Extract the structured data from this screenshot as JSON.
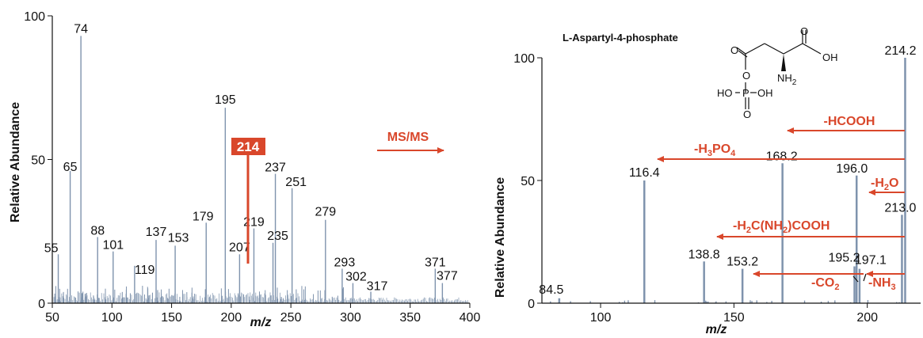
{
  "colors": {
    "peak": "#7f93ad",
    "annotation": "#d9472b",
    "axis": "#111111"
  },
  "chart_data": [
    {
      "type": "bar",
      "xlabel": "m/z",
      "ylabel": "Relative Abundance",
      "xlim": [
        50,
        400
      ],
      "ylim": [
        0,
        100
      ],
      "xticks": [
        "50",
        "100",
        "150",
        "200",
        "250",
        "300",
        "350",
        "400"
      ],
      "yticks": [
        "0",
        "50",
        "100"
      ],
      "precursor_label": "214",
      "arrow_label": "MS/MS",
      "peaks": [
        {
          "mz": 55,
          "intensity": 17,
          "label": "55"
        },
        {
          "mz": 65,
          "intensity": 46,
          "label": "65"
        },
        {
          "mz": 74,
          "intensity": 93,
          "label": "74"
        },
        {
          "mz": 88,
          "intensity": 23,
          "label": "88"
        },
        {
          "mz": 101,
          "intensity": 18,
          "label": "101"
        },
        {
          "mz": 119,
          "intensity": 13,
          "label": "119"
        },
        {
          "mz": 137,
          "intensity": 22,
          "label": "137"
        },
        {
          "mz": 153,
          "intensity": 20,
          "label": "153"
        },
        {
          "mz": 179,
          "intensity": 28,
          "label": "179"
        },
        {
          "mz": 195,
          "intensity": 68,
          "label": "195"
        },
        {
          "mz": 207,
          "intensity": 17,
          "label": "207"
        },
        {
          "mz": 219,
          "intensity": 26,
          "label": "219"
        },
        {
          "mz": 235,
          "intensity": 21,
          "label": "235"
        },
        {
          "mz": 237,
          "intensity": 45,
          "label": "237"
        },
        {
          "mz": 251,
          "intensity": 40,
          "label": "251"
        },
        {
          "mz": 279,
          "intensity": 29,
          "label": "279"
        },
        {
          "mz": 293,
          "intensity": 12,
          "label": "293"
        },
        {
          "mz": 302,
          "intensity": 7,
          "label": "302"
        },
        {
          "mz": 317,
          "intensity": 4,
          "label": "317"
        },
        {
          "mz": 371,
          "intensity": 12,
          "label": "371"
        },
        {
          "mz": 377,
          "intensity": 7,
          "label": "377"
        }
      ]
    },
    {
      "type": "bar",
      "title": "L-Aspartyl-4-phosphate",
      "xlabel": "m/z",
      "ylabel": "Relative Abundance",
      "xlim": [
        78,
        220
      ],
      "ylim": [
        0,
        100
      ],
      "xticks": [
        "100",
        "150",
        "200"
      ],
      "yticks": [
        "0",
        "50",
        "100"
      ],
      "peaks": [
        {
          "mz": 84.5,
          "intensity": 2,
          "label": "84.5"
        },
        {
          "mz": 116.4,
          "intensity": 50,
          "label": "116.4"
        },
        {
          "mz": 138.8,
          "intensity": 17,
          "label": "138.8"
        },
        {
          "mz": 153.2,
          "intensity": 14,
          "label": "153.2"
        },
        {
          "mz": 168.2,
          "intensity": 57,
          "label": "168.2"
        },
        {
          "mz": 195.2,
          "intensity": 15,
          "label": "195.2"
        },
        {
          "mz": 196.0,
          "intensity": 52,
          "label": "196.0"
        },
        {
          "mz": 197.1,
          "intensity": 14,
          "label": "197.1"
        },
        {
          "mz": 213.0,
          "intensity": 36,
          "label": "213.0"
        },
        {
          "mz": 214.2,
          "intensity": 100,
          "label": "214.2"
        }
      ],
      "neutral_losses": [
        {
          "label": "-HCOOH",
          "from": 214.2,
          "to": 168.2
        },
        {
          "label": "-H3PO4",
          "from": 214.2,
          "to": 116.4
        },
        {
          "label": "-H2O",
          "from": 214.2,
          "to": 196.0
        },
        {
          "label": "-H2C(NH2)COOH",
          "from": 214.2,
          "to": 116.4
        },
        {
          "label": "-CO2",
          "from": 197.1,
          "to": 153.2
        },
        {
          "label": "-NH3",
          "from": 214.2,
          "to": 197.1
        }
      ],
      "structure": {
        "atoms": [
          "O",
          "OH",
          "NH2",
          "O",
          "O",
          "P",
          "HO",
          "OH",
          "O"
        ]
      }
    }
  ]
}
